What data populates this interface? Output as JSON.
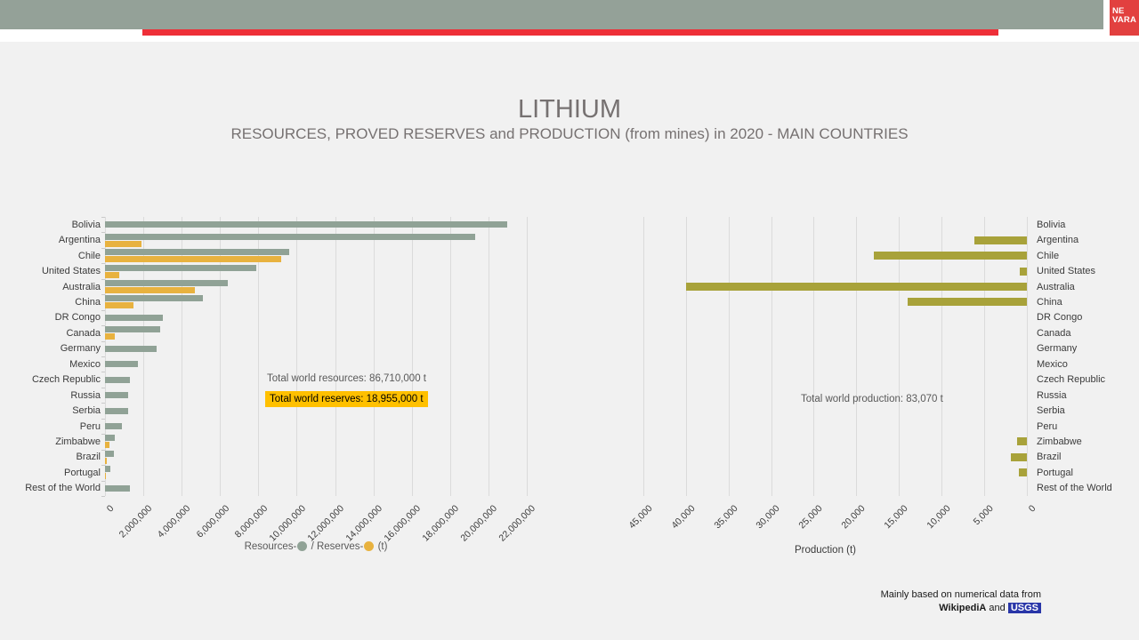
{
  "logo": {
    "line1": "NE",
    "line2": "VARA"
  },
  "title": "LITHIUM",
  "subtitle": "RESOURCES, PROVED RESERVES and PRODUCTION (from mines) in 2020 - MAIN COUNTRIES",
  "colors": {
    "header_band": "#94A198",
    "header_red_bar": "#EE2F38",
    "logo_red": "#E2403F",
    "background": "#F1F1F1",
    "resources_bar": "#90A296",
    "reserves_bar": "#E8B23F",
    "production_bar": "#A8A23A",
    "gridline": "#DBDBDB",
    "category_tick": "#C9C9C9",
    "title_text": "#767171",
    "axis_text": "#3B3B3B",
    "annotation_text": "#595959",
    "reserves_highlight": "#FFC000",
    "usgs_highlight": "#2936A8"
  },
  "chart_data": [
    {
      "type": "bar",
      "orientation": "horizontal",
      "title": "Resources and Reserves by country",
      "categories": [
        "Bolivia",
        "Argentina",
        "Chile",
        "United States",
        "Australia",
        "China",
        "DR Congo",
        "Canada",
        "Germany",
        "Mexico",
        "Czech Republic",
        "Russia",
        "Serbia",
        "Peru",
        "Zimbabwe",
        "Brazil",
        "Portugal",
        "Rest of the World"
      ],
      "series": [
        {
          "name": "Resources",
          "unit": "t",
          "color": "#90A296",
          "values": [
            21000000,
            19300000,
            9600000,
            7900000,
            6400000,
            5100000,
            3000000,
            2900000,
            2700000,
            1700000,
            1300000,
            1200000,
            1200000,
            880000,
            500000,
            470000,
            270000,
            1290000
          ]
        },
        {
          "name": "Reserves",
          "unit": "t",
          "color": "#E8B23F",
          "values": [
            null,
            1900000,
            9200000,
            750000,
            4700000,
            1500000,
            null,
            530000,
            null,
            null,
            null,
            null,
            null,
            null,
            220000,
            95000,
            60000,
            null
          ]
        }
      ],
      "xlim": [
        0,
        22000000
      ],
      "x_ticks": [
        {
          "v": 0,
          "label": "0"
        },
        {
          "v": 2000000,
          "label": "2,000,000"
        },
        {
          "v": 4000000,
          "label": "4,000,000"
        },
        {
          "v": 6000000,
          "label": "6,000,000"
        },
        {
          "v": 8000000,
          "label": "8,000,000"
        },
        {
          "v": 10000000,
          "label": "10,000,000"
        },
        {
          "v": 12000000,
          "label": "12,000,000"
        },
        {
          "v": 14000000,
          "label": "14,000,000"
        },
        {
          "v": 16000000,
          "label": "16,000,000"
        },
        {
          "v": 18000000,
          "label": "18,000,000"
        },
        {
          "v": 20000000,
          "label": "20,000,000"
        },
        {
          "v": 22000000,
          "label": "22,000,000"
        }
      ],
      "legend": {
        "resources": "Resources-",
        "slash": " / ",
        "reserves": "Reserves-",
        "unit": " (t)"
      },
      "annotations": {
        "total_resources": "Total world resources: 86,710,000 t",
        "total_reserves": "Total world reserves: 18,955,000 t"
      },
      "grid": true
    },
    {
      "type": "bar",
      "orientation": "horizontal",
      "axis_reversed": true,
      "title": "Production by country",
      "categories": [
        "Bolivia",
        "Argentina",
        "Chile",
        "United States",
        "Australia",
        "China",
        "DR Congo",
        "Canada",
        "Germany",
        "Mexico",
        "Czech Republic",
        "Russia",
        "Serbia",
        "Peru",
        "Zimbabwe",
        "Brazil",
        "Portugal",
        "Rest of the World"
      ],
      "series": [
        {
          "name": "Production",
          "unit": "t",
          "color": "#A8A23A",
          "values": [
            null,
            6200,
            18000,
            870,
            40000,
            14000,
            null,
            null,
            null,
            null,
            null,
            null,
            null,
            null,
            1200,
            1900,
            900,
            null
          ]
        }
      ],
      "xlim": [
        45000,
        0
      ],
      "x_ticks": [
        {
          "v": 45000,
          "label": "45,000"
        },
        {
          "v": 40000,
          "label": "40,000"
        },
        {
          "v": 35000,
          "label": "35,000"
        },
        {
          "v": 30000,
          "label": "30,000"
        },
        {
          "v": 25000,
          "label": "25,000"
        },
        {
          "v": 20000,
          "label": "20,000"
        },
        {
          "v": 15000,
          "label": "15,000"
        },
        {
          "v": 10000,
          "label": "10,000"
        },
        {
          "v": 5000,
          "label": "5,000"
        },
        {
          "v": 0,
          "label": "0"
        }
      ],
      "xlabel": "Production (t)",
      "annotations": {
        "total_production": "Total world production: 83,070 t"
      },
      "grid": true
    }
  ],
  "footer": {
    "line1": "Mainly based on numerical data from",
    "wikipedia": "WikipediA",
    "and": " and ",
    "usgs": "USGS"
  }
}
